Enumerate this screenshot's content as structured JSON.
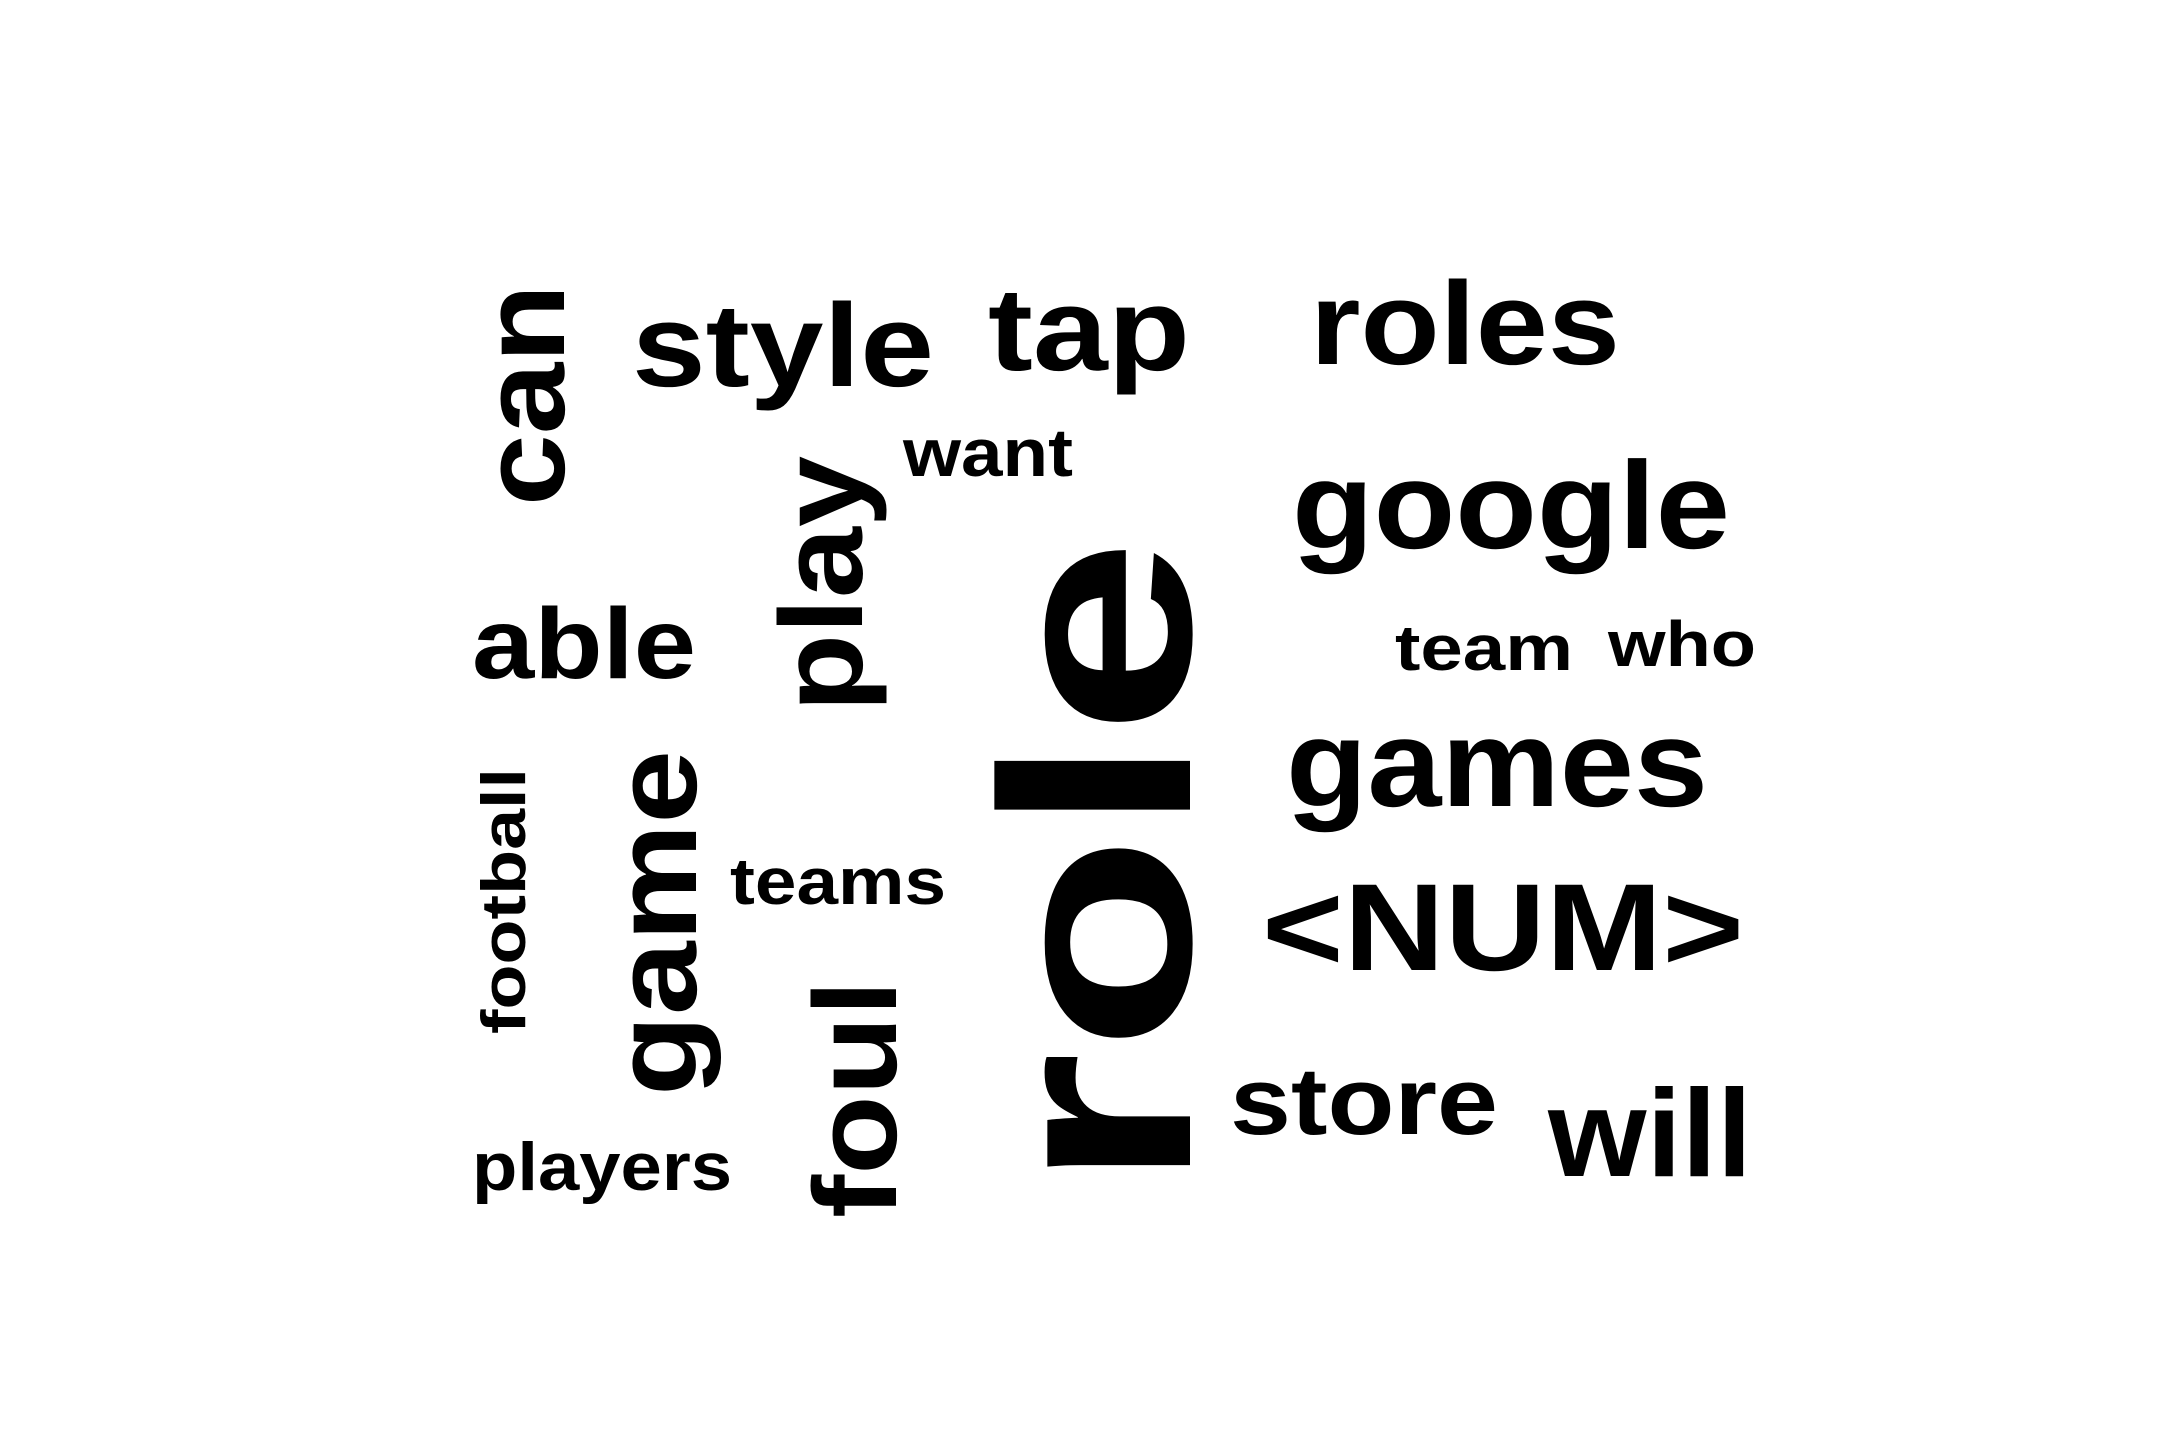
{
  "words": {
    "role": "role",
    "style": "style",
    "tap": "tap",
    "roles": "roles",
    "can": "can",
    "want": "want",
    "play": "play",
    "google": "google",
    "able": "able",
    "team": "team",
    "who": "who",
    "games": "games",
    "football": "football",
    "game": "game",
    "teams": "teams",
    "num": "<NUM>",
    "foul": "foul",
    "store": "store",
    "will": "will",
    "players": "players"
  },
  "colors": {
    "background": "#ffffff",
    "text": "#000000"
  }
}
